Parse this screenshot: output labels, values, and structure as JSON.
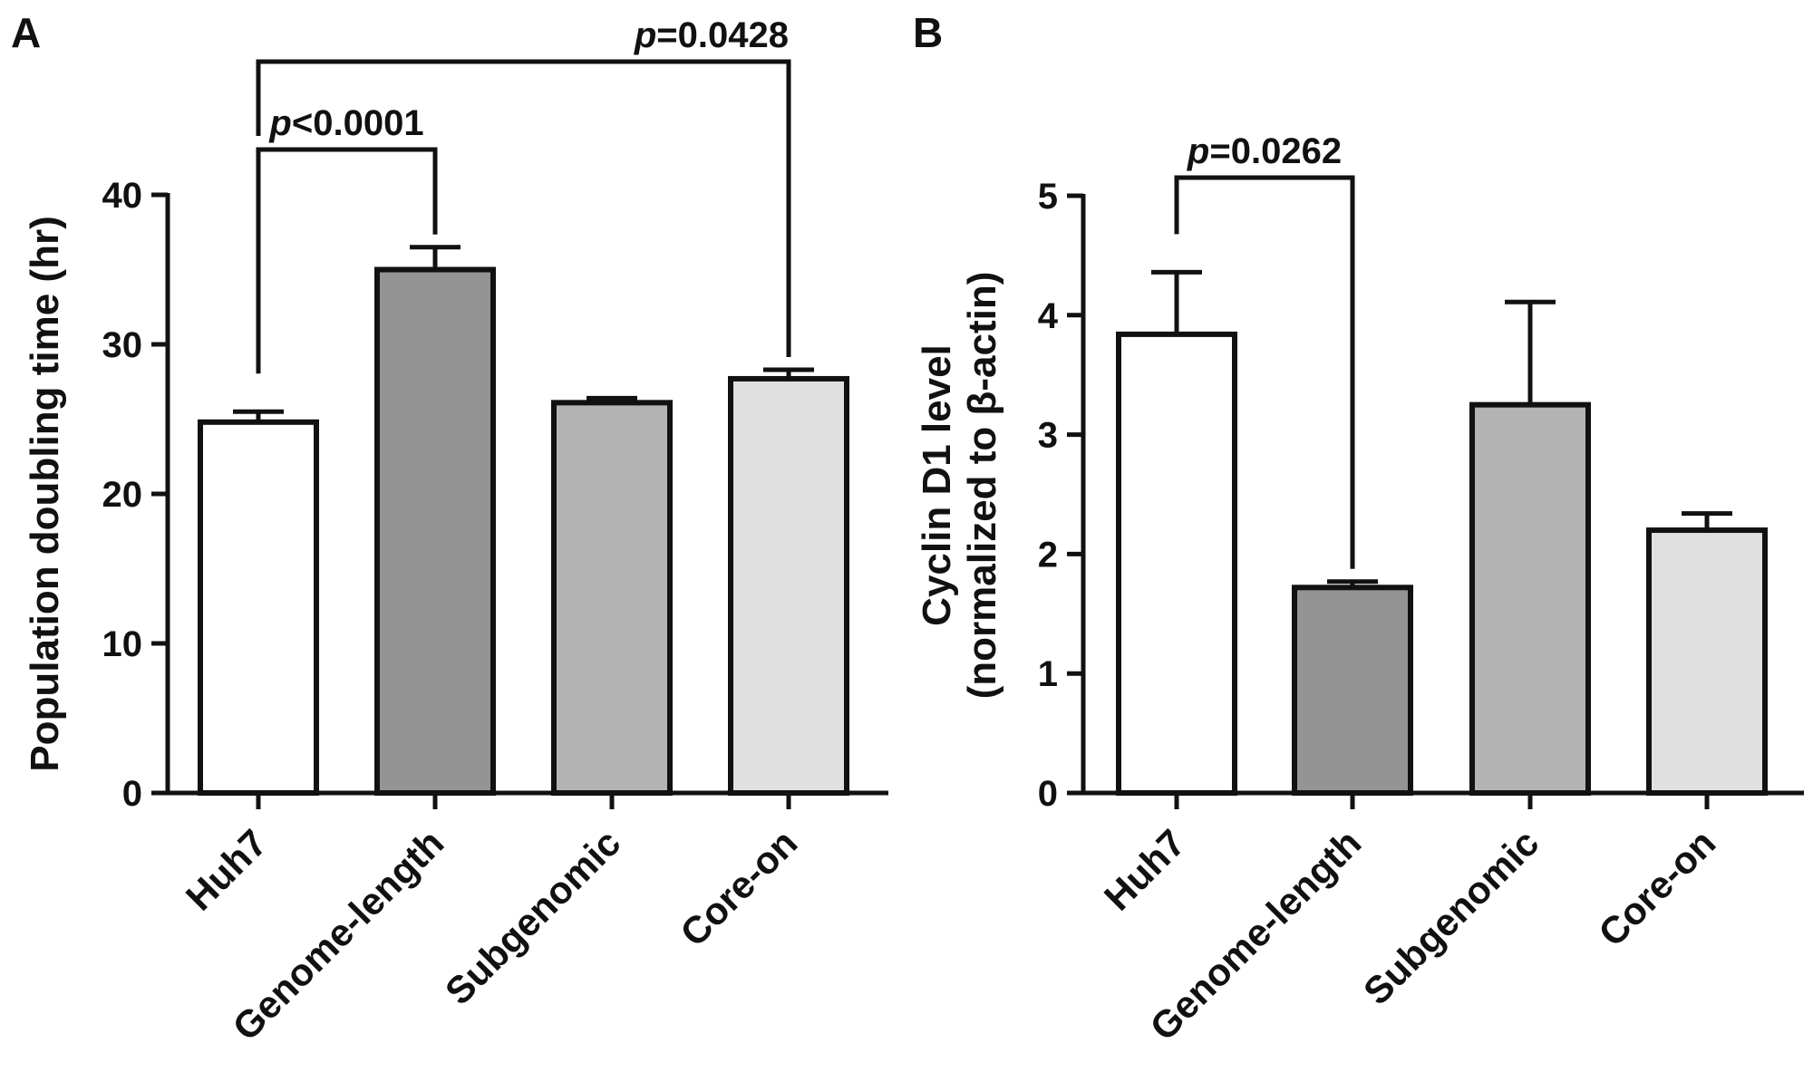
{
  "chart_data": [
    {
      "type": "bar",
      "panel": "A",
      "title": "",
      "xlabel": "",
      "ylabel": "Population doubling time (hr)",
      "ylim": [
        0,
        40
      ],
      "yticks": [
        0,
        10,
        20,
        30,
        40
      ],
      "grid": false,
      "categories": [
        "Huh7",
        "Genome-length",
        "Subgenomic",
        "Core-on"
      ],
      "series": [
        {
          "values": [
            24.8,
            35.0,
            26.1,
            27.7
          ],
          "errors": [
            0.7,
            1.5,
            0.3,
            0.6
          ],
          "colors": [
            "#ffffff",
            "#949494",
            "#b3b3b3",
            "#e0e0e0"
          ]
        }
      ],
      "annotations": [
        {
          "from": "Huh7",
          "to": "Genome-length",
          "p_prefix": "p",
          "p_text": "<0.0001",
          "level": 1
        },
        {
          "from": "Huh7",
          "to": "Core-on",
          "p_prefix": "p",
          "p_text": "=0.0428",
          "level": 2
        }
      ]
    },
    {
      "type": "bar",
      "panel": "B",
      "title": "",
      "xlabel": "",
      "ylabel_line1": "Cyclin D1 level",
      "ylabel_line2": "(normalized to β-actin)",
      "ylim": [
        0,
        5
      ],
      "yticks": [
        0,
        1,
        2,
        3,
        4,
        5
      ],
      "grid": false,
      "categories": [
        "Huh7",
        "Genome-length",
        "Subgenomic",
        "Core-on"
      ],
      "series": [
        {
          "values": [
            3.84,
            1.72,
            3.25,
            2.2
          ],
          "errors": [
            0.52,
            0.05,
            0.86,
            0.14
          ],
          "colors": [
            "#ffffff",
            "#949494",
            "#b3b3b3",
            "#e0e0e0"
          ]
        }
      ],
      "annotations": [
        {
          "from": "Huh7",
          "to": "Genome-length",
          "p_prefix": "p",
          "p_text": "=0.0262",
          "level": 1
        }
      ]
    }
  ]
}
